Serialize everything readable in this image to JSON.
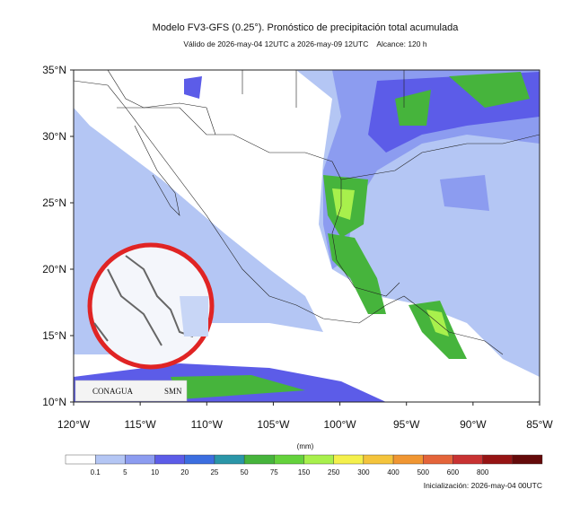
{
  "header": {
    "title": "Modelo FV3-GFS (0.25°). Pronóstico de precipitación total acumulada",
    "subtitle": "Válido de 2026-may-04 12UTC a 2026-may-09 12UTC    Alcance: 120 h"
  },
  "map": {
    "lat_labels": [
      "35°N",
      "30°N",
      "25°N",
      "20°N",
      "15°N",
      "10°N"
    ],
    "lon_labels": [
      "120°W",
      "115°W",
      "110°W",
      "105°W",
      "100°W",
      "95°W",
      "90°W",
      "85°W"
    ],
    "logos": [
      "CONAGUA",
      "SMN"
    ]
  },
  "colorbar": {
    "unit": "(mm)",
    "labels": [
      0.1,
      5,
      10,
      20,
      25,
      50,
      75,
      150,
      250,
      300,
      400,
      500,
      600,
      800
    ],
    "colors": [
      "#ffffff",
      "#b4c6f4",
      "#8c9cf0",
      "#5c5ce8",
      "#3c6ee0",
      "#2a96a8",
      "#46b43c",
      "#64d23c",
      "#a8f04c",
      "#f4f04c",
      "#f4c43c",
      "#f09632",
      "#e4643a",
      "#c83232",
      "#961414",
      "#640a0a"
    ]
  },
  "footer": {
    "init": "Inicialización: 2026-may-04 00UTC"
  }
}
